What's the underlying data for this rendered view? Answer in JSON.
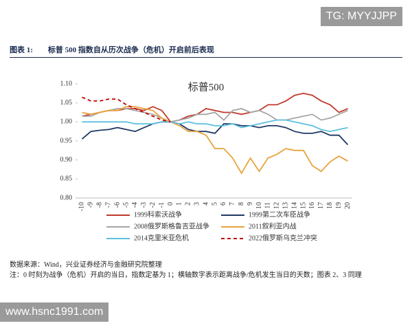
{
  "watermark_top": "TG: MYYJJPP",
  "figure_label": "图表 1:",
  "figure_title": "标普 500 指数自从历次战争（危机）开启前后表现",
  "chart_data": {
    "type": "line",
    "title": "标普500",
    "categories": [
      "-10",
      "-9",
      "-8",
      "-7",
      "-6",
      "-5",
      "-4",
      "-3",
      "-2",
      "-1",
      "0",
      "1",
      "2",
      "3",
      "4",
      "5",
      "6",
      "7",
      "8",
      "9",
      "10",
      "11",
      "12",
      "13",
      "14",
      "15",
      "16",
      "17",
      "18",
      "19",
      "20"
    ],
    "ylim": [
      0.8,
      1.1
    ],
    "yticks": [
      {
        "value": 0.8,
        "label": "0.80"
      },
      {
        "value": 0.85,
        "label": "0.85"
      },
      {
        "value": 0.9,
        "label": "0.90"
      },
      {
        "value": 0.95,
        "label": "0.95"
      },
      {
        "value": 1.0,
        "label": "1.00"
      },
      {
        "value": 1.05,
        "label": "1.05"
      },
      {
        "value": 1.1,
        "label": "1.10"
      }
    ],
    "series": [
      {
        "name": "1999科索沃战争",
        "color": "#c0392b",
        "dashed": false,
        "values": [
          1.015,
          1.02,
          1.025,
          1.03,
          1.03,
          1.035,
          1.035,
          1.03,
          1.04,
          1.03,
          1.0,
          1.005,
          1.015,
          1.02,
          1.035,
          1.03,
          1.025,
          1.025,
          1.02,
          1.025,
          1.03,
          1.045,
          1.045,
          1.055,
          1.07,
          1.075,
          1.07,
          1.055,
          1.045,
          1.025,
          1.035
        ]
      },
      {
        "name": "1999第二次车臣战争",
        "color": "#1f3864",
        "dashed": false,
        "values": [
          0.955,
          0.975,
          0.978,
          0.98,
          0.985,
          0.98,
          0.975,
          0.985,
          0.995,
          1.0,
          1.0,
          0.995,
          0.98,
          0.975,
          0.975,
          0.97,
          0.995,
          0.995,
          0.99,
          0.99,
          0.985,
          0.99,
          0.99,
          0.985,
          0.975,
          0.97,
          0.97,
          0.975,
          0.965,
          0.965,
          0.94
        ]
      },
      {
        "name": "2008俄罗斯格鲁吉亚战争",
        "color": "#a6a6a6",
        "dashed": false,
        "values": [
          1.015,
          1.015,
          1.025,
          1.03,
          1.035,
          1.035,
          1.03,
          1.025,
          1.02,
          1.01,
          1.0,
          1.005,
          1.01,
          1.02,
          1.02,
          1.025,
          1.005,
          1.03,
          1.035,
          1.025,
          1.03,
          1.02,
          1.005,
          1.005,
          1.01,
          1.015,
          1.02,
          1.005,
          1.01,
          1.02,
          1.03
        ]
      },
      {
        "name": "2011叙利亚内战",
        "color": "#e8a33d",
        "dashed": false,
        "values": [
          1.025,
          1.02,
          1.025,
          1.03,
          1.03,
          1.04,
          1.04,
          1.035,
          1.03,
          1.01,
          1.0,
          0.99,
          0.975,
          0.975,
          0.965,
          0.93,
          0.93,
          0.905,
          0.865,
          0.905,
          0.87,
          0.905,
          0.915,
          0.93,
          0.925,
          0.925,
          0.885,
          0.87,
          0.895,
          0.91,
          0.897
        ]
      },
      {
        "name": "2014克里米亚危机",
        "color": "#5bc0de",
        "dashed": false,
        "values": [
          1.0,
          1.0,
          1.0,
          1.0,
          1.0,
          1.0,
          0.995,
          0.995,
          0.995,
          1.0,
          1.0,
          0.995,
          1.0,
          0.995,
          0.995,
          0.99,
          0.99,
          0.995,
          0.985,
          0.99,
          0.995,
          1.0,
          1.005,
          1.005,
          1.0,
          0.995,
          0.99,
          0.98,
          0.975,
          0.98,
          0.985
        ]
      },
      {
        "name": "2022俄罗斯乌克兰冲突",
        "color": "#c00000",
        "dashed": true,
        "values": [
          1.065,
          1.055,
          1.055,
          1.06,
          1.06,
          1.045,
          1.035,
          1.025,
          1.015,
          1.005,
          1.0,
          null,
          null,
          null,
          null,
          null,
          null,
          null,
          null,
          null,
          null,
          null,
          null,
          null,
          null,
          null,
          null,
          null,
          null,
          null,
          null
        ]
      }
    ]
  },
  "source": "数据来源：Wind，兴业证券经济与金融研究院整理",
  "note": "注：0 时刻为战争（危机）开启的当日，指数定基为 1；横轴数字表示距离战争/危机发生当日的天数；图表 2、3 同理",
  "watermark_bottom": "www.hsnc1991.com"
}
